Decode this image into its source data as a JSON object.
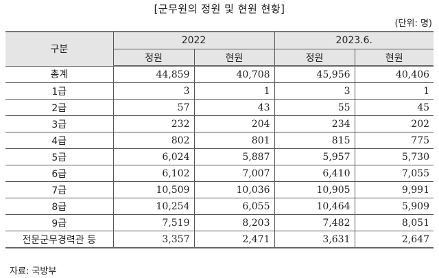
{
  "title": "[군무원의 정원 및 현원 현황]",
  "unit": "(단위: 명)",
  "table": {
    "row_header": "구분",
    "groups": [
      "2022",
      "2023.6."
    ],
    "subheaders": [
      "정원",
      "현원",
      "정원",
      "현원"
    ],
    "rows": [
      {
        "label": "총계",
        "values": [
          "44,859",
          "40,708",
          "45,956",
          "40,406"
        ]
      },
      {
        "label": "1급",
        "values": [
          "3",
          "1",
          "3",
          "1"
        ]
      },
      {
        "label": "2급",
        "values": [
          "57",
          "43",
          "55",
          "45"
        ]
      },
      {
        "label": "3급",
        "values": [
          "232",
          "204",
          "234",
          "202"
        ]
      },
      {
        "label": "4급",
        "values": [
          "802",
          "801",
          "815",
          "775"
        ]
      },
      {
        "label": "5급",
        "values": [
          "6,024",
          "5,887",
          "5,957",
          "5,730"
        ]
      },
      {
        "label": "6급",
        "values": [
          "6,102",
          "7,007",
          "6,410",
          "7,055"
        ]
      },
      {
        "label": "7급",
        "values": [
          "10,509",
          "10,036",
          "10,905",
          "9,991"
        ]
      },
      {
        "label": "8급",
        "values": [
          "10,254",
          "6,055",
          "10,464",
          "5,909"
        ]
      },
      {
        "label": "9급",
        "values": [
          "7,519",
          "8,203",
          "7,482",
          "8,051"
        ]
      },
      {
        "label": "전문군무경력관 등",
        "values": [
          "3,357",
          "2,471",
          "3,631",
          "2,647"
        ]
      }
    ]
  },
  "source": "자료: 국방부",
  "colors": {
    "header_bg": "#e5e5e5",
    "border": "#555555"
  }
}
